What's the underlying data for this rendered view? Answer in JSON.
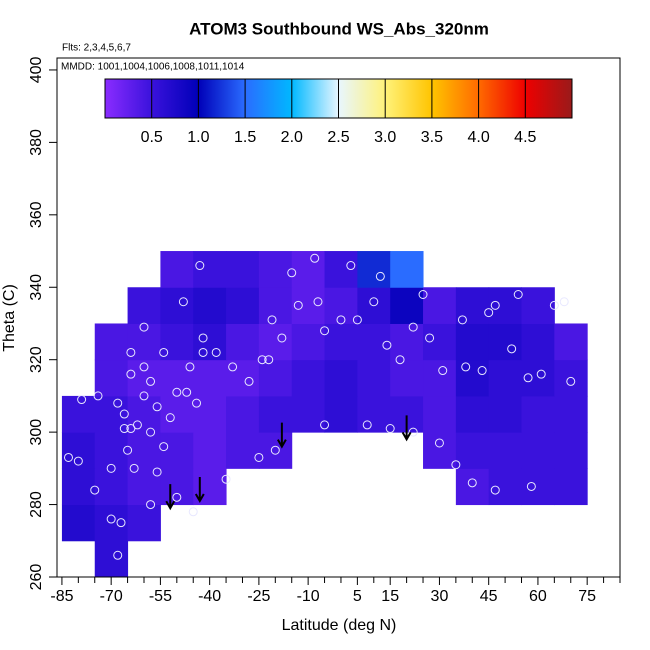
{
  "chart_data": {
    "type": "contour",
    "title": "ATOM3 Southbound WS_Abs_320nm",
    "subtitle": "Flts: 2,3,4,5,6,7",
    "annotation": "MMDD: 1001,1004,1006,1008,1011,1014",
    "x_label": "Latitude (deg N)",
    "y_label": "Theta (C)",
    "xlim": [
      -86.5,
      85
    ],
    "ylim": [
      260,
      403.3
    ],
    "xticks": [
      -85,
      -70,
      -55,
      -40,
      -25,
      -10,
      5,
      15,
      30,
      45,
      60,
      75
    ],
    "xminorticks": [
      -80,
      -75,
      -65,
      -60,
      -50,
      -45,
      -35,
      -30,
      -20,
      -15,
      -5,
      0,
      10,
      20,
      25,
      35,
      40,
      50,
      55,
      65,
      70,
      80,
      85
    ],
    "yticks": [
      260,
      280,
      300,
      320,
      340,
      360,
      380,
      400
    ],
    "colorbar": {
      "lim": [
        0,
        5
      ],
      "ticks": [
        0.5,
        {
          "value": 1,
          "label": "1.0"
        },
        1.5,
        {
          "value": 2,
          "label": "2.0"
        },
        2.5,
        {
          "value": 3,
          "label": "3.0"
        },
        3.5,
        {
          "value": 4,
          "label": "4.0"
        },
        4.5
      ],
      "colors": [
        "#8a2cff",
        "#3a12dc",
        "#0000b8",
        "#2a6cff",
        "#00b8ff",
        "#e8f6ff",
        "#fff27a",
        "#ffc400",
        "#ff6a00",
        "#ee0000",
        "#9a1a1a"
      ]
    },
    "field": {
      "x": [
        -80,
        -70,
        -60,
        -50,
        -40,
        -30,
        -20,
        -10,
        0,
        10,
        20,
        30,
        40,
        50,
        60,
        70
      ],
      "y": [
        265,
        275,
        285,
        295,
        305,
        315,
        325,
        335,
        345
      ],
      "z": [
        [
          null,
          0.6,
          null,
          null,
          null,
          null,
          null,
          null,
          null,
          null,
          null,
          null,
          null,
          null,
          null,
          null
        ],
        [
          0.7,
          0.6,
          0.5,
          null,
          null,
          null,
          null,
          null,
          null,
          null,
          null,
          null,
          null,
          null,
          null,
          null
        ],
        [
          0.6,
          0.5,
          0.4,
          0.4,
          0.3,
          null,
          null,
          null,
          null,
          null,
          null,
          null,
          0.4,
          0.5,
          0.5,
          0.5
        ],
        [
          0.6,
          0.5,
          0.4,
          0.4,
          0.3,
          0.4,
          0.4,
          null,
          null,
          null,
          null,
          0.4,
          0.5,
          0.5,
          0.5,
          0.5
        ],
        [
          0.5,
          0.5,
          0.4,
          0.3,
          0.3,
          0.4,
          0.5,
          0.5,
          0.6,
          0.5,
          0.5,
          0.4,
          0.6,
          0.6,
          0.5,
          0.5
        ],
        [
          null,
          0.4,
          0.3,
          0.3,
          0.3,
          0.3,
          0.4,
          0.5,
          0.6,
          0.5,
          0.4,
          0.4,
          0.7,
          0.6,
          0.6,
          0.5
        ],
        [
          null,
          0.4,
          0.4,
          0.5,
          0.6,
          0.4,
          0.3,
          0.4,
          0.5,
          0.5,
          0.4,
          0.5,
          0.7,
          0.7,
          0.6,
          0.4
        ],
        [
          null,
          null,
          0.5,
          0.6,
          0.7,
          0.6,
          0.4,
          0.3,
          0.4,
          0.6,
          0.9,
          0.4,
          0.6,
          0.6,
          0.5,
          null
        ],
        [
          null,
          null,
          null,
          0.4,
          0.5,
          0.5,
          0.4,
          0.3,
          0.5,
          1.2,
          1.5,
          null,
          null,
          null,
          null,
          null
        ]
      ]
    },
    "points": {
      "x": [
        -79,
        -74,
        -68,
        -66,
        -66,
        -64,
        -62,
        -60,
        -58,
        -56,
        -54,
        -52,
        -50,
        -47,
        -44,
        -42,
        -38,
        -33,
        -28,
        -24,
        -22,
        -18,
        -13,
        -7,
        -5,
        0,
        5,
        10,
        14,
        18,
        22,
        27,
        31,
        35,
        38,
        43,
        47,
        52,
        57,
        61,
        65,
        70,
        -70,
        -67,
        -63,
        -58,
        -50,
        -45,
        -35,
        -25,
        -20,
        -5,
        8,
        15,
        22,
        30,
        40,
        47,
        58,
        -75,
        -83,
        -80,
        -68,
        -70,
        -65,
        -56,
        -60,
        -58,
        -54,
        -64,
        -64,
        -60,
        -46,
        -42,
        -48,
        -43,
        -21,
        -15,
        -8,
        3,
        12,
        25,
        37,
        45,
        54,
        68
      ],
      "y": [
        309,
        310,
        308,
        305,
        301,
        301,
        302,
        310,
        300,
        307,
        296,
        304,
        311,
        311,
        308,
        322,
        322,
        318,
        314,
        320,
        320,
        326,
        335,
        336,
        328,
        331,
        331,
        336,
        324,
        320,
        329,
        326,
        317,
        291,
        318,
        317,
        335,
        323,
        315,
        316,
        335,
        314,
        276,
        275,
        290,
        280,
        282,
        278,
        287,
        293,
        295,
        302,
        302,
        301,
        300,
        297,
        286,
        284,
        285,
        284,
        293,
        292,
        266,
        290,
        295,
        289,
        318,
        314,
        322,
        316,
        322,
        329,
        318,
        326,
        336,
        346,
        331,
        344,
        348,
        346,
        343,
        338,
        331,
        333,
        338,
        336
      ]
    },
    "arrows": {
      "x": [
        -52,
        -43,
        -18,
        20
      ],
      "y": [
        279,
        281,
        296,
        298
      ]
    }
  }
}
